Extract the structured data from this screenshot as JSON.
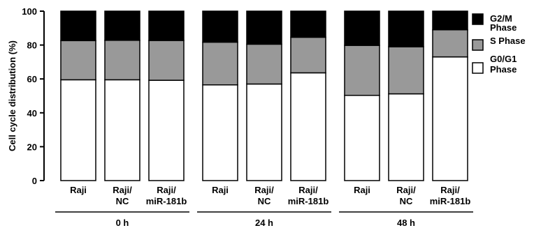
{
  "chart_data": {
    "type": "bar",
    "stacked": true,
    "ylabel": "Cell cycle distribution (%)",
    "ylim": [
      0,
      100
    ],
    "yticks": [
      0,
      20,
      40,
      60,
      80,
      100
    ],
    "grid": false,
    "legend_position": "right",
    "categories": [
      [
        "Raji"
      ],
      [
        "Raji/",
        "NC"
      ],
      [
        "Raji/",
        "miR-181b"
      ],
      [
        "Raji"
      ],
      [
        "Raji/",
        "NC"
      ],
      [
        "Raji/",
        "miR-181b"
      ],
      [
        "Raji"
      ],
      [
        "Raji/",
        "NC"
      ],
      [
        "Raji/",
        "miR-181b"
      ]
    ],
    "groups": [
      {
        "label": "0 h",
        "indices": [
          0,
          1,
          2
        ]
      },
      {
        "label": "24 h",
        "indices": [
          3,
          4,
          5
        ]
      },
      {
        "label": "48 h",
        "indices": [
          6,
          7,
          8
        ]
      }
    ],
    "series": [
      {
        "name": [
          "G0/G1",
          "Phase"
        ],
        "color": "#ffffff",
        "values": [
          59.5,
          59.5,
          59.2,
          56.5,
          57,
          63.6,
          50.3,
          51.2,
          73
        ]
      },
      {
        "name": [
          "S Phase"
        ],
        "color": "#999999",
        "values": [
          23.1,
          23.3,
          23.5,
          25.2,
          23.5,
          21,
          29.5,
          27.8,
          16
        ]
      },
      {
        "name": [
          "G2/M",
          "Phase"
        ],
        "color": "#000000",
        "values": [
          17.4,
          17.2,
          17.3,
          18.3,
          19.5,
          15.4,
          20.2,
          21,
          11
        ]
      }
    ],
    "legend_order": [
      2,
      1,
      0
    ]
  }
}
